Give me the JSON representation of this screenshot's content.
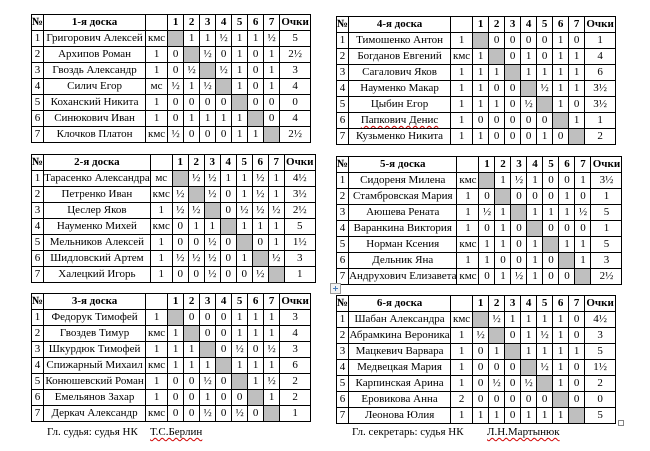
{
  "colors": {
    "diagonal_cell": "#bfbfbf",
    "table_border": "#000000",
    "spellcheck_squiggle": "#d00000",
    "background": "#ffffff"
  },
  "table_headers": {
    "number_col": "№",
    "round_cols": [
      "1",
      "2",
      "3",
      "4",
      "5",
      "6",
      "7"
    ],
    "points_col": "Очки"
  },
  "boards": [
    {
      "title": "1-я доска",
      "players": [
        {
          "no": "1",
          "name": "Григорович Алексей",
          "rank": "кмс",
          "results": [
            null,
            "1",
            "1",
            "½",
            "1",
            "1",
            "½"
          ],
          "points": "5",
          "squiggle": false
        },
        {
          "no": "2",
          "name": "Архипов Роман",
          "rank": "1",
          "results": [
            "0",
            null,
            "½",
            "0",
            "1",
            "0",
            "1"
          ],
          "points": "2½",
          "squiggle": false
        },
        {
          "no": "3",
          "name": "Гвоздь Александр",
          "rank": "1",
          "results": [
            "0",
            "½",
            null,
            "½",
            "1",
            "0",
            "1"
          ],
          "points": "3",
          "squiggle": false
        },
        {
          "no": "4",
          "name": "Силич Егор",
          "rank": "мс",
          "results": [
            "½",
            "1",
            "½",
            null,
            "1",
            "0",
            "1"
          ],
          "points": "4",
          "squiggle": false
        },
        {
          "no": "5",
          "name": "Коханский Никита",
          "rank": "1",
          "results": [
            "0",
            "0",
            "0",
            "0",
            null,
            "0",
            "0"
          ],
          "points": "0",
          "squiggle": false
        },
        {
          "no": "6",
          "name": "Синюкович Иван",
          "rank": "1",
          "results": [
            "0",
            "1",
            "1",
            "1",
            "1",
            null,
            "0"
          ],
          "points": "4",
          "squiggle": false
        },
        {
          "no": "7",
          "name": "Клочков Платон",
          "rank": "кмс",
          "results": [
            "½",
            "0",
            "0",
            "0",
            "1",
            "1",
            null
          ],
          "points": "2½",
          "squiggle": false
        }
      ]
    },
    {
      "title": "2-я доска",
      "players": [
        {
          "no": "1",
          "name": "Тарасенко Александра",
          "rank": "мс",
          "results": [
            null,
            "½",
            "½",
            "1",
            "1",
            "½",
            "1"
          ],
          "points": "4½",
          "squiggle": false
        },
        {
          "no": "2",
          "name": "Петренко Иван",
          "rank": "кмс",
          "results": [
            "½",
            null,
            "½",
            "0",
            "1",
            "½",
            "1"
          ],
          "points": "3½",
          "squiggle": false
        },
        {
          "no": "3",
          "name": "Цеслер Яков",
          "rank": "1",
          "results": [
            "½",
            "½",
            null,
            "0",
            "½",
            "½",
            "½"
          ],
          "points": "2½",
          "squiggle": false
        },
        {
          "no": "4",
          "name": "Науменко Михей",
          "rank": "кмс",
          "results": [
            "0",
            "1",
            "1",
            null,
            "1",
            "1",
            "1"
          ],
          "points": "5",
          "squiggle": false
        },
        {
          "no": "5",
          "name": "Мельников Алексей",
          "rank": "1",
          "results": [
            "0",
            "0",
            "½",
            "0",
            null,
            "0",
            "1"
          ],
          "points": "1½",
          "squiggle": false
        },
        {
          "no": "6",
          "name": "Шидловский Артем",
          "rank": "1",
          "results": [
            "½",
            "½",
            "½",
            "0",
            "1",
            null,
            "½"
          ],
          "points": "3",
          "squiggle": false
        },
        {
          "no": "7",
          "name": "Халецкий Игорь",
          "rank": "1",
          "results": [
            "0",
            "0",
            "½",
            "0",
            "0",
            "½",
            null
          ],
          "points": "1",
          "squiggle": false
        }
      ]
    },
    {
      "title": "3-я доска",
      "players": [
        {
          "no": "1",
          "name": "Федорук Тимофей",
          "rank": "1",
          "results": [
            null,
            "0",
            "0",
            "0",
            "1",
            "1",
            "1"
          ],
          "points": "3",
          "squiggle": false
        },
        {
          "no": "2",
          "name": "Гвоздев Тимур",
          "rank": "кмс",
          "results": [
            "1",
            null,
            "0",
            "0",
            "1",
            "1",
            "1"
          ],
          "points": "4",
          "squiggle": false
        },
        {
          "no": "3",
          "name": "Шкурдюк Тимофей",
          "rank": "1",
          "results": [
            "1",
            "1",
            null,
            "0",
            "½",
            "0",
            "½"
          ],
          "points": "3",
          "squiggle": false
        },
        {
          "no": "4",
          "name": "Спижарный Михаил",
          "rank": "кмс",
          "results": [
            "1",
            "1",
            "1",
            null,
            "1",
            "1",
            "1"
          ],
          "points": "6",
          "squiggle": false
        },
        {
          "no": "5",
          "name": "Конюшевский Роман",
          "rank": "1",
          "results": [
            "0",
            "0",
            "½",
            "0",
            null,
            "1",
            "½"
          ],
          "points": "2",
          "squiggle": false
        },
        {
          "no": "6",
          "name": "Емельянов Захар",
          "rank": "1",
          "results": [
            "0",
            "0",
            "1",
            "0",
            "0",
            null,
            "1"
          ],
          "points": "2",
          "squiggle": false
        },
        {
          "no": "7",
          "name": "Деркач Александр",
          "rank": "кмс",
          "results": [
            "0",
            "0",
            "½",
            "0",
            "½",
            "0",
            null
          ],
          "points": "1",
          "squiggle": false
        }
      ]
    },
    {
      "title": "4-я доска",
      "players": [
        {
          "no": "1",
          "name": "Тимошенко Антон",
          "rank": "1",
          "results": [
            null,
            "0",
            "0",
            "0",
            "0",
            "1",
            "0"
          ],
          "points": "1",
          "squiggle": false
        },
        {
          "no": "2",
          "name": "Богданов Евгений",
          "rank": "кмс",
          "results": [
            "1",
            null,
            "0",
            "1",
            "0",
            "1",
            "1"
          ],
          "points": "4",
          "squiggle": false
        },
        {
          "no": "3",
          "name": "Сагалович Яков",
          "rank": "1",
          "results": [
            "1",
            "1",
            null,
            "1",
            "1",
            "1",
            "1"
          ],
          "points": "6",
          "squiggle": false
        },
        {
          "no": "4",
          "name": "Науменко Макар",
          "rank": "1",
          "results": [
            "1",
            "0",
            "0",
            null,
            "½",
            "1",
            "1"
          ],
          "points": "3½",
          "squiggle": false
        },
        {
          "no": "5",
          "name": "Цыбин Егор",
          "rank": "1",
          "results": [
            "1",
            "1",
            "0",
            "½",
            null,
            "1",
            "0"
          ],
          "points": "3½",
          "squiggle": false
        },
        {
          "no": "6",
          "name": "Папкович Денис",
          "rank": "1",
          "results": [
            "0",
            "0",
            "0",
            "0",
            "0",
            null,
            "1"
          ],
          "points": "1",
          "squiggle": true
        },
        {
          "no": "7",
          "name": "Кузьменко Никита",
          "rank": "1",
          "results": [
            "1",
            "0",
            "0",
            "0",
            "1",
            "0",
            null
          ],
          "points": "2",
          "squiggle": false
        }
      ]
    },
    {
      "title": "5-я доска",
      "players": [
        {
          "no": "1",
          "name": "Сидореня Милена",
          "rank": "кмс",
          "results": [
            null,
            "1",
            "½",
            "1",
            "0",
            "0",
            "1"
          ],
          "points": "3½",
          "squiggle": false
        },
        {
          "no": "2",
          "name": "Стамбровская Мария",
          "rank": "1",
          "results": [
            "0",
            null,
            "0",
            "0",
            "0",
            "1",
            "0"
          ],
          "points": "1",
          "squiggle": false
        },
        {
          "no": "3",
          "name": "Аюшева Рената",
          "rank": "1",
          "results": [
            "½",
            "1",
            null,
            "1",
            "1",
            "1",
            "½"
          ],
          "points": "5",
          "squiggle": false
        },
        {
          "no": "4",
          "name": "Варанкина Виктория",
          "rank": "1",
          "results": [
            "0",
            "1",
            "0",
            null,
            "0",
            "0",
            "0"
          ],
          "points": "1",
          "squiggle": false
        },
        {
          "no": "5",
          "name": "Норман Ксения",
          "rank": "кмс",
          "results": [
            "1",
            "1",
            "0",
            "1",
            null,
            "1",
            "1"
          ],
          "points": "5",
          "squiggle": false
        },
        {
          "no": "6",
          "name": "Дельник Яна",
          "rank": "1",
          "results": [
            "1",
            "0",
            "0",
            "1",
            "0",
            null,
            "1"
          ],
          "points": "3",
          "squiggle": false
        },
        {
          "no": "7",
          "name": "Андрухович Елизавета",
          "rank": "кмс",
          "results": [
            "0",
            "1",
            "½",
            "1",
            "0",
            "0",
            null
          ],
          "points": "2½",
          "squiggle": false
        }
      ]
    },
    {
      "title": "6-я доска",
      "players": [
        {
          "no": "1",
          "name": "Шабан Александра",
          "rank": "кмс",
          "results": [
            null,
            "½",
            "1",
            "1",
            "1",
            "1",
            "0"
          ],
          "points": "4½",
          "squiggle": false
        },
        {
          "no": "2",
          "name": "Абрамкина Вероника",
          "rank": "1",
          "results": [
            "½",
            null,
            "0",
            "1",
            "½",
            "1",
            "0"
          ],
          "points": "3",
          "squiggle": false
        },
        {
          "no": "3",
          "name": "Мацкевич Варвара",
          "rank": "1",
          "results": [
            "0",
            "1",
            null,
            "1",
            "1",
            "1",
            "1"
          ],
          "points": "5",
          "squiggle": false
        },
        {
          "no": "4",
          "name": "Медвецкая Мария",
          "rank": "1",
          "results": [
            "0",
            "0",
            "0",
            null,
            "½",
            "1",
            "0"
          ],
          "points": "1½",
          "squiggle": false
        },
        {
          "no": "5",
          "name": "Карпинская Арина",
          "rank": "1",
          "results": [
            "0",
            "½",
            "0",
            "½",
            null,
            "1",
            "0"
          ],
          "points": "2",
          "squiggle": false
        },
        {
          "no": "6",
          "name": "Еровикова Анна",
          "rank": "2",
          "results": [
            "0",
            "0",
            "0",
            "0",
            "0",
            null,
            "0"
          ],
          "points": "0",
          "squiggle": false
        },
        {
          "no": "7",
          "name": "Леонова Юлия",
          "rank": "1",
          "results": [
            "1",
            "1",
            "0",
            "1",
            "1",
            "1",
            null
          ],
          "points": "5",
          "squiggle": false
        }
      ]
    }
  ],
  "footers": {
    "left_label": "Гл. судья: судья НК",
    "left_name": "Т.С.Берлин",
    "right_label": "Гл. секретарь: судья НК",
    "right_name": "Л.Н.Мартынюк"
  }
}
